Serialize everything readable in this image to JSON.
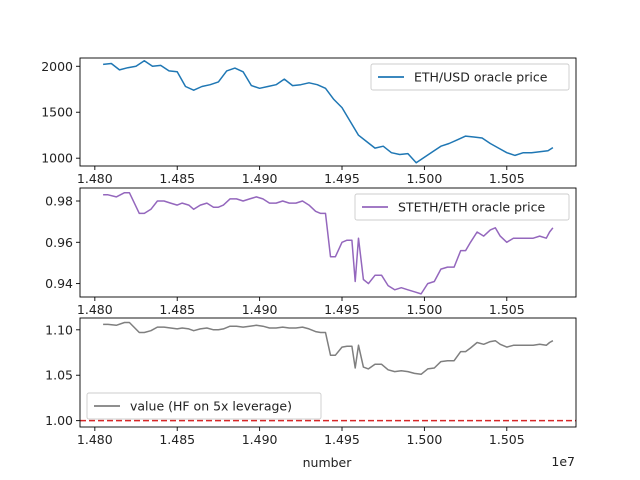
{
  "chart_data": [
    {
      "type": "line",
      "xlim": [
        14791000,
        15092000
      ],
      "ylim": [
        915,
        2090
      ],
      "xticks": [
        "1.480",
        "1.485",
        "1.490",
        "1.495",
        "1.500",
        "1.505"
      ],
      "xtick_values": [
        14800000,
        14850000,
        14900000,
        14950000,
        15000000,
        15050000
      ],
      "yticks": [
        "1000",
        "1500",
        "2000"
      ],
      "ytick_values": [
        1000,
        1500,
        2000
      ],
      "legend_position": "upper-right",
      "grid": false,
      "series": [
        {
          "name": "ETH/USD oracle price",
          "color": "#1f77b4",
          "x": [
            14805000,
            14810000,
            14815000,
            14820000,
            14825000,
            14830000,
            14835000,
            14840000,
            14845000,
            14850000,
            14855000,
            14860000,
            14865000,
            14870000,
            14875000,
            14880000,
            14885000,
            14890000,
            14895000,
            14900000,
            14905000,
            14910000,
            14915000,
            14920000,
            14925000,
            14930000,
            14935000,
            14940000,
            14945000,
            14950000,
            14955000,
            14960000,
            14965000,
            14970000,
            14975000,
            14980000,
            14985000,
            14990000,
            14995000,
            15000000,
            15005000,
            15010000,
            15015000,
            15020000,
            15025000,
            15030000,
            15035000,
            15040000,
            15045000,
            15050000,
            15055000,
            15060000,
            15065000,
            15070000,
            15075000,
            15078000
          ],
          "values": [
            2020,
            2030,
            1960,
            1985,
            2000,
            2060,
            2000,
            2010,
            1950,
            1940,
            1780,
            1740,
            1780,
            1800,
            1830,
            1950,
            1980,
            1940,
            1790,
            1760,
            1780,
            1800,
            1860,
            1790,
            1800,
            1820,
            1800,
            1760,
            1640,
            1550,
            1400,
            1250,
            1180,
            1110,
            1130,
            1060,
            1040,
            1050,
            950,
            1010,
            1070,
            1130,
            1160,
            1200,
            1240,
            1230,
            1220,
            1160,
            1110,
            1060,
            1030,
            1060,
            1060,
            1070,
            1080,
            1115
          ]
        }
      ]
    },
    {
      "type": "line",
      "xlim": [
        14791000,
        15092000
      ],
      "ylim": [
        0.9335,
        0.9863
      ],
      "xticks": [
        "1.480",
        "1.485",
        "1.490",
        "1.495",
        "1.500",
        "1.505"
      ],
      "xtick_values": [
        14800000,
        14850000,
        14900000,
        14950000,
        15000000,
        15050000
      ],
      "yticks": [
        "0.94",
        "0.96",
        "0.98"
      ],
      "ytick_values": [
        0.94,
        0.96,
        0.98
      ],
      "legend_position": "upper-right",
      "grid": false,
      "series": [
        {
          "name": "STETH/ETH oracle price",
          "color": "#9467bd",
          "x": [
            14805000,
            14808000,
            14813000,
            14818000,
            14821000,
            14827000,
            14830000,
            14834000,
            14838000,
            14842000,
            14846000,
            14850000,
            14853000,
            14857000,
            14860000,
            14864000,
            14868000,
            14872000,
            14875000,
            14878000,
            14882000,
            14886000,
            14890000,
            14894000,
            14898000,
            14902000,
            14906000,
            14910000,
            14914000,
            14918000,
            14922000,
            14926000,
            14930000,
            14934000,
            14937000,
            14940000,
            14943000,
            14946000,
            14950000,
            14953000,
            14956000,
            14958000,
            14960000,
            14963000,
            14966000,
            14970000,
            14974000,
            14978000,
            14982000,
            14986000,
            14990000,
            14994000,
            14998000,
            15002000,
            15006000,
            15010000,
            15014000,
            15018000,
            15022000,
            15025000,
            15028000,
            15032000,
            15036000,
            15040000,
            15043000,
            15046000,
            15050000,
            15054000,
            15058000,
            15062000,
            15066000,
            15070000,
            15074000,
            15076000,
            15078000
          ],
          "values": [
            0.983,
            0.983,
            0.982,
            0.984,
            0.984,
            0.974,
            0.974,
            0.976,
            0.98,
            0.98,
            0.979,
            0.978,
            0.979,
            0.978,
            0.976,
            0.978,
            0.979,
            0.977,
            0.977,
            0.978,
            0.981,
            0.981,
            0.98,
            0.981,
            0.982,
            0.981,
            0.979,
            0.979,
            0.98,
            0.979,
            0.979,
            0.98,
            0.978,
            0.975,
            0.974,
            0.974,
            0.953,
            0.953,
            0.96,
            0.961,
            0.961,
            0.941,
            0.962,
            0.942,
            0.94,
            0.944,
            0.944,
            0.939,
            0.937,
            0.938,
            0.937,
            0.936,
            0.935,
            0.94,
            0.941,
            0.947,
            0.948,
            0.948,
            0.956,
            0.956,
            0.96,
            0.965,
            0.963,
            0.966,
            0.967,
            0.963,
            0.96,
            0.962,
            0.962,
            0.962,
            0.962,
            0.963,
            0.962,
            0.965,
            0.967
          ]
        }
      ]
    },
    {
      "type": "line",
      "xlim": [
        14791000,
        15092000
      ],
      "ylim": [
        0.993,
        1.113
      ],
      "xticks": [
        "1.480",
        "1.485",
        "1.490",
        "1.495",
        "1.500",
        "1.505"
      ],
      "xtick_values": [
        14800000,
        14850000,
        14900000,
        14950000,
        15000000,
        15050000
      ],
      "yticks": [
        "1.00",
        "1.05",
        "1.10"
      ],
      "ytick_values": [
        1.0,
        1.05,
        1.1
      ],
      "xlabel": "number",
      "offset_text": "1e7",
      "legend_position": "lower-left",
      "grid": false,
      "reference_line": {
        "y": 1.0,
        "color": "#d62728",
        "style": "dashed"
      },
      "series": [
        {
          "name": "value (HF on 5x leverage)",
          "color": "#7f7f7f",
          "x": [
            14805000,
            14808000,
            14813000,
            14818000,
            14821000,
            14827000,
            14830000,
            14834000,
            14838000,
            14842000,
            14846000,
            14850000,
            14853000,
            14857000,
            14860000,
            14864000,
            14868000,
            14872000,
            14875000,
            14878000,
            14882000,
            14886000,
            14890000,
            14894000,
            14898000,
            14902000,
            14906000,
            14910000,
            14914000,
            14918000,
            14922000,
            14926000,
            14930000,
            14934000,
            14937000,
            14940000,
            14943000,
            14946000,
            14950000,
            14953000,
            14956000,
            14958000,
            14960000,
            14963000,
            14966000,
            14970000,
            14974000,
            14978000,
            14982000,
            14986000,
            14990000,
            14994000,
            14998000,
            15002000,
            15006000,
            15010000,
            15014000,
            15018000,
            15022000,
            15025000,
            15028000,
            15032000,
            15036000,
            15040000,
            15043000,
            15046000,
            15050000,
            15054000,
            15058000,
            15062000,
            15066000,
            15070000,
            15074000,
            15076000,
            15078000
          ],
          "values": [
            1.106,
            1.106,
            1.105,
            1.108,
            1.108,
            1.097,
            1.097,
            1.099,
            1.103,
            1.103,
            1.102,
            1.101,
            1.102,
            1.101,
            1.099,
            1.101,
            1.102,
            1.1,
            1.1,
            1.101,
            1.104,
            1.104,
            1.103,
            1.104,
            1.105,
            1.104,
            1.102,
            1.102,
            1.103,
            1.102,
            1.102,
            1.103,
            1.101,
            1.098,
            1.097,
            1.097,
            1.072,
            1.072,
            1.081,
            1.082,
            1.082,
            1.058,
            1.083,
            1.059,
            1.057,
            1.062,
            1.062,
            1.056,
            1.054,
            1.055,
            1.054,
            1.052,
            1.051,
            1.057,
            1.058,
            1.065,
            1.066,
            1.066,
            1.076,
            1.076,
            1.08,
            1.086,
            1.084,
            1.087,
            1.088,
            1.084,
            1.081,
            1.083,
            1.083,
            1.083,
            1.083,
            1.084,
            1.083,
            1.086,
            1.088
          ]
        }
      ]
    }
  ]
}
